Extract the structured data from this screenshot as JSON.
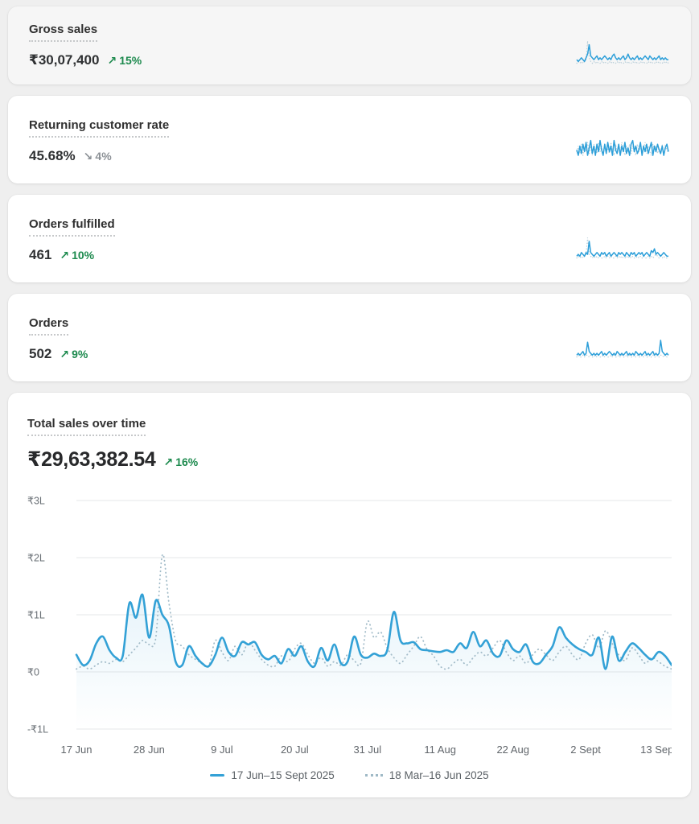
{
  "colors": {
    "accent_blue": "#33a1d6",
    "comparison_dotted": "#a3bcc9",
    "positive_green": "#1d8a4e",
    "neutral_gray": "#8c9196",
    "card_background": "#ffffff",
    "page_background": "#efefef"
  },
  "metric_cards": [
    {
      "title": "Gross sales",
      "value": "₹30,07,400",
      "change": {
        "arrow": "↗",
        "text": "15%",
        "direction": "up"
      },
      "sparkline": {
        "current": [
          3,
          2,
          3,
          4,
          3,
          2,
          4,
          6,
          11,
          5,
          4,
          3,
          4,
          5,
          3,
          4,
          3,
          4,
          5,
          4,
          3,
          4,
          3,
          5,
          6,
          4,
          3,
          4,
          3,
          4,
          5,
          3,
          4,
          6,
          4,
          3,
          4,
          3,
          4,
          5,
          3,
          4,
          3,
          4,
          5,
          4,
          3,
          5,
          4,
          3,
          4,
          3,
          4,
          5,
          3,
          4,
          3,
          4,
          3,
          3
        ],
        "previous": [
          1,
          2,
          1,
          2,
          1,
          2,
          3,
          13,
          4,
          2,
          1,
          2,
          1,
          2,
          1,
          1,
          2,
          1,
          2,
          1,
          1,
          2,
          1,
          2,
          1,
          1,
          2,
          1,
          2,
          1,
          1,
          2,
          1,
          2,
          1,
          1,
          2,
          1,
          2,
          1,
          1,
          2,
          1,
          2,
          1,
          1,
          2,
          1,
          2,
          1,
          1,
          2,
          1,
          2,
          1,
          1,
          2,
          1,
          2,
          1
        ]
      }
    },
    {
      "title": "Returning customer rate",
      "value": "45.68%",
      "change": {
        "arrow": "↘",
        "text": "4%",
        "direction": "down"
      },
      "sparkline": {
        "current": [
          6,
          3,
          8,
          4,
          9,
          5,
          10,
          3,
          7,
          11,
          4,
          8,
          3,
          9,
          5,
          11,
          6,
          3,
          9,
          4,
          10,
          5,
          8,
          3,
          11,
          6,
          4,
          9,
          3,
          8,
          5,
          10,
          4,
          7,
          3,
          9,
          11,
          5,
          8,
          4,
          6,
          10,
          3,
          8,
          5,
          9,
          4,
          7,
          10,
          3,
          8,
          5,
          9,
          6,
          4,
          8,
          3,
          7,
          9,
          5
        ],
        "previous": [
          5,
          8,
          4,
          9,
          3,
          8,
          5,
          10,
          4,
          8,
          3,
          9,
          6,
          4,
          10,
          5,
          8,
          3,
          9,
          5,
          7,
          4,
          10,
          6,
          3,
          9,
          5,
          8,
          4,
          10,
          6,
          3,
          8,
          5,
          9,
          4,
          8,
          6,
          3,
          9,
          5,
          8,
          4,
          7,
          10,
          4,
          8,
          5,
          3,
          9,
          6,
          8,
          4,
          7,
          5,
          9,
          3,
          8,
          6,
          4
        ]
      }
    },
    {
      "title": "Orders fulfilled",
      "value": "461",
      "change": {
        "arrow": "↗",
        "text": "10%",
        "direction": "up"
      },
      "sparkline": {
        "current": [
          2,
          3,
          2,
          4,
          3,
          2,
          4,
          3,
          10,
          4,
          3,
          2,
          3,
          4,
          3,
          2,
          4,
          3,
          4,
          2,
          3,
          4,
          2,
          3,
          4,
          3,
          2,
          4,
          3,
          4,
          3,
          2,
          4,
          3,
          2,
          4,
          3,
          4,
          2,
          3,
          4,
          3,
          4,
          2,
          3,
          4,
          3,
          2,
          5,
          4,
          6,
          3,
          4,
          3,
          2,
          3,
          4,
          3,
          2,
          2
        ],
        "previous": [
          1,
          2,
          1,
          2,
          1,
          2,
          3,
          12,
          3,
          2,
          1,
          2,
          1,
          2,
          1,
          2,
          1,
          1,
          2,
          1,
          2,
          1,
          2,
          1,
          1,
          2,
          1,
          2,
          1,
          2,
          1,
          1,
          2,
          1,
          2,
          1,
          2,
          1,
          1,
          2,
          1,
          2,
          1,
          2,
          1,
          1,
          2,
          1,
          2,
          1,
          2,
          3,
          2,
          1,
          2,
          1,
          2,
          1,
          1,
          1
        ]
      }
    },
    {
      "title": "Orders",
      "value": "502",
      "change": {
        "arrow": "↗",
        "text": "9%",
        "direction": "up"
      },
      "sparkline": {
        "current": [
          2,
          3,
          2,
          3,
          4,
          2,
          3,
          9,
          4,
          3,
          2,
          3,
          2,
          3,
          2,
          3,
          4,
          2,
          3,
          2,
          3,
          4,
          3,
          2,
          3,
          2,
          4,
          3,
          2,
          3,
          2,
          3,
          4,
          2,
          3,
          2,
          3,
          2,
          4,
          3,
          2,
          3,
          2,
          3,
          4,
          2,
          3,
          2,
          3,
          4,
          2,
          3,
          2,
          3,
          10,
          4,
          3,
          2,
          3,
          2
        ],
        "previous": [
          1,
          2,
          1,
          1,
          2,
          1,
          2,
          2,
          1,
          2,
          1,
          1,
          2,
          1,
          2,
          1,
          1,
          2,
          1,
          2,
          1,
          1,
          2,
          1,
          2,
          1,
          1,
          2,
          1,
          2,
          1,
          1,
          2,
          1,
          2,
          1,
          1,
          2,
          1,
          2,
          1,
          1,
          2,
          1,
          2,
          1,
          1,
          2,
          1,
          2,
          1,
          1,
          2,
          1,
          2,
          2,
          1,
          2,
          1,
          1
        ]
      }
    }
  ],
  "chart_card": {
    "title": "Total sales over time",
    "value": "₹29,63,382.54",
    "change": {
      "arrow": "↗",
      "text": "16%",
      "direction": "up"
    }
  },
  "chart_data": {
    "type": "line",
    "title": "Total sales over time",
    "unit": "INR lakh (L)",
    "ylim": [
      -1,
      3
    ],
    "y_ticks": [
      "₹3L",
      "₹2L",
      "₹1L",
      "₹0",
      "-₹1L"
    ],
    "y_tick_values": [
      3,
      2,
      1,
      0,
      -1
    ],
    "x_ticks": [
      "17 Jun",
      "28 Jun",
      "9 Jul",
      "20 Jul",
      "31 Jul",
      "11 Aug",
      "22 Aug",
      "2 Sept",
      "13 Sept"
    ],
    "x_tick_days": [
      0,
      11,
      22,
      33,
      44,
      55,
      66,
      77,
      88
    ],
    "x_range_days": [
      0,
      90
    ],
    "grid": "horizontal",
    "legend_position": "bottom-center",
    "legend": [
      {
        "label": "17 Jun–15 Sept 2025",
        "style": "solid"
      },
      {
        "label": "18 Mar–16 Jun 2025",
        "style": "dotted"
      }
    ],
    "series": [
      {
        "name": "17 Jun–15 Sept 2025",
        "style": "solid",
        "values": [
          0.3,
          0.12,
          0.2,
          0.5,
          0.62,
          0.38,
          0.25,
          0.28,
          1.2,
          0.95,
          1.35,
          0.6,
          1.25,
          1.0,
          0.8,
          0.18,
          0.12,
          0.45,
          0.28,
          0.15,
          0.1,
          0.3,
          0.6,
          0.35,
          0.28,
          0.52,
          0.48,
          0.52,
          0.3,
          0.22,
          0.28,
          0.15,
          0.4,
          0.28,
          0.45,
          0.18,
          0.1,
          0.42,
          0.2,
          0.48,
          0.15,
          0.18,
          0.62,
          0.3,
          0.25,
          0.32,
          0.28,
          0.38,
          1.05,
          0.55,
          0.5,
          0.52,
          0.4,
          0.38,
          0.36,
          0.35,
          0.38,
          0.35,
          0.5,
          0.42,
          0.7,
          0.45,
          0.55,
          0.32,
          0.28,
          0.55,
          0.4,
          0.35,
          0.48,
          0.18,
          0.15,
          0.3,
          0.45,
          0.78,
          0.6,
          0.48,
          0.4,
          0.35,
          0.3,
          0.6,
          0.05,
          0.62,
          0.2,
          0.35,
          0.5,
          0.42,
          0.3,
          0.22,
          0.35,
          0.28,
          0.12
        ]
      },
      {
        "name": "18 Mar–16 Jun 2025",
        "style": "dotted",
        "values": [
          0.05,
          0.1,
          0.05,
          0.12,
          0.18,
          0.15,
          0.22,
          0.18,
          0.3,
          0.42,
          0.55,
          0.48,
          0.6,
          2.05,
          1.2,
          0.55,
          0.45,
          0.3,
          0.22,
          0.15,
          0.1,
          0.55,
          0.35,
          0.2,
          0.45,
          0.3,
          0.52,
          0.38,
          0.22,
          0.12,
          0.1,
          0.28,
          0.18,
          0.4,
          0.5,
          0.3,
          0.15,
          0.25,
          0.1,
          0.18,
          0.12,
          0.3,
          0.2,
          0.15,
          0.88,
          0.6,
          0.7,
          0.42,
          0.25,
          0.15,
          0.3,
          0.45,
          0.62,
          0.4,
          0.28,
          0.1,
          0.05,
          0.15,
          0.22,
          0.12,
          0.25,
          0.35,
          0.28,
          0.42,
          0.55,
          0.35,
          0.2,
          0.28,
          0.15,
          0.3,
          0.4,
          0.3,
          0.2,
          0.35,
          0.45,
          0.3,
          0.22,
          0.5,
          0.65,
          0.42,
          0.72,
          0.5,
          0.3,
          0.2,
          0.42,
          0.3,
          0.15,
          0.25,
          0.18,
          0.1,
          0.05
        ]
      }
    ]
  }
}
